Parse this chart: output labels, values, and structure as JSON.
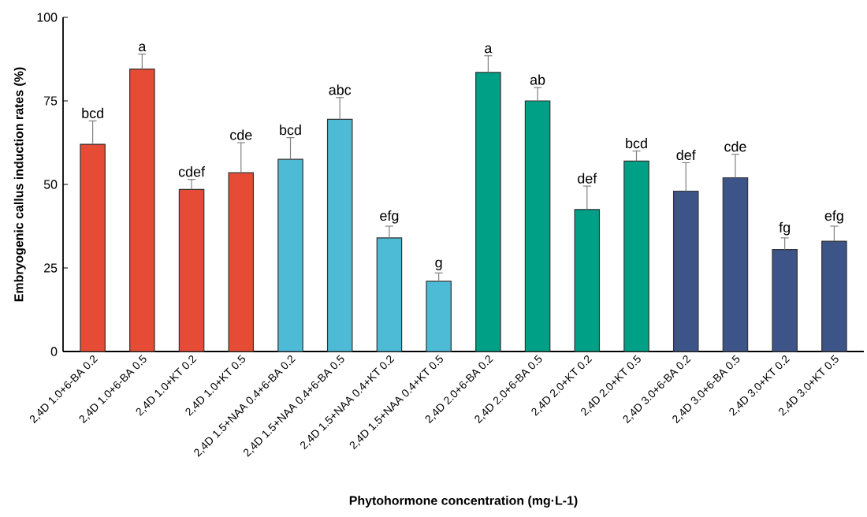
{
  "chart_data": {
    "type": "bar",
    "xlabel": "Phytohormone concentration (mg·L-1)",
    "ylabel": "Embryogenic callus induction rates (%)",
    "categories": [
      "2,4D 1.0+6-BA 0.2",
      "2,4D 1.0+6-BA 0.5",
      "2,4D 1.0+KT 0.2",
      "2,4D 1.0+KT 0.5",
      "2,4D 1.5+NAA 0.4+6-BA 0.2",
      "2,4D 1.5+NAA 0.4+6-BA 0.5",
      "2,4D 1.5+NAA 0.4+KT 0.2",
      "2,4D 1.5+NAA 0.4+KT 0.5",
      "2,4D 2.0+6-BA 0.2",
      "2,4D 2.0+6-BA 0.5",
      "2,4D 2.0+KT 0.2",
      "2,4D 2.0+KT 0.5",
      "2,4D 3.0+6-BA 0.2",
      "2,4D 3.0+6-BA 0.5",
      "2,4D 3.0+KT 0.2",
      "2,4D 3.0+KT 0.5"
    ],
    "values": [
      62,
      84.5,
      48.5,
      53.5,
      57.5,
      69.5,
      34,
      21,
      83.5,
      75,
      42.5,
      57,
      48,
      52,
      30.5,
      33
    ],
    "errors": [
      [
        62,
        69
      ],
      [
        84.5,
        89
      ],
      [
        48.5,
        51.5
      ],
      [
        53.5,
        62.5
      ],
      [
        57.5,
        64
      ],
      [
        69.5,
        76
      ],
      [
        34,
        37.5
      ],
      [
        21,
        23.5
      ],
      [
        83.5,
        88.5
      ],
      [
        75,
        79
      ],
      [
        42.5,
        49.5
      ],
      [
        57,
        60
      ],
      [
        48,
        56.5
      ],
      [
        52,
        59
      ],
      [
        30.5,
        34
      ],
      [
        33,
        37.5
      ]
    ],
    "value_labels": [
      "bcd",
      "a",
      "cdef",
      "cde",
      "bcd",
      "abc",
      "efg",
      "g",
      "a",
      "ab",
      "def",
      "bcd",
      "def",
      "cde",
      "fg",
      "efg"
    ],
    "colors": [
      "#e64b35",
      "#e64b35",
      "#e64b35",
      "#e64b35",
      "#4dbbd5",
      "#4dbbd5",
      "#4dbbd5",
      "#4dbbd5",
      "#00a087",
      "#00a087",
      "#00a087",
      "#00a087",
      "#3c5488",
      "#3c5488",
      "#3c5488",
      "#3c5488"
    ],
    "ylim": [
      0,
      100
    ],
    "yticks": [
      0,
      25,
      50,
      75,
      100
    ]
  }
}
